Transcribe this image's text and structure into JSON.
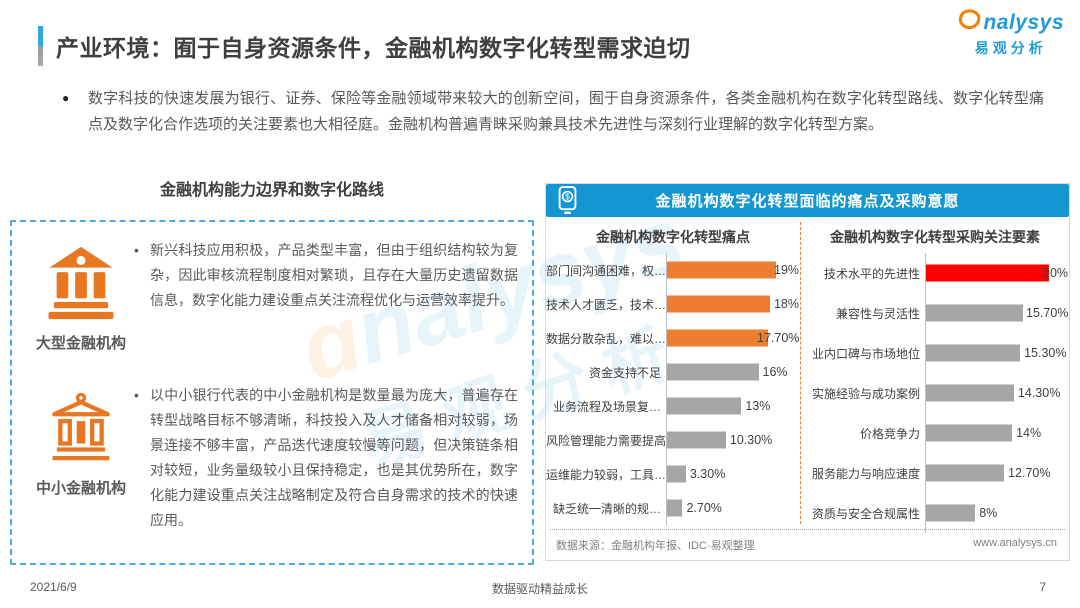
{
  "header": {
    "title": "产业环境：囿于自身资源条件，金融机构数字化转型需求迫切",
    "logo_text": "nalysys",
    "logo_subtext": "易观分析"
  },
  "intro": {
    "bullet": "●",
    "text": "数字科技的快速发展为银行、证券、保险等金融领域带来较大的创新空间，囿于自身资源条件，各类金融机构在数字化转型路线、数字化转型痛点及数字化合作选项的关注要素也大相径庭。金融机构普遍青睐采购兼具技术先进性与深刻行业理解的数字化转型方案。"
  },
  "left_panel": {
    "title": "金融机构能力边界和数字化路线",
    "items": [
      {
        "bullet": "•",
        "label": "大型金融机构",
        "text": "新兴科技应用积极，产品类型丰富，但由于组织结构较为复杂，因此审核流程制度相对繁琐，且存在大量历史遗留数据信息，数字化能力建设重点关注流程优化与运营效率提升。"
      },
      {
        "bullet": "•",
        "label": "中小金融机构",
        "text": "以中小银行代表的中小金融机构是数量最为庞大，普遍存在转型战略目标不够清晰，科技投入及人才储备相对较弱，场景连接不够丰富，产品迭代速度较慢等问题，但决策链条相对较短，业务量级较小且保持稳定，也是其优势所在，数字化能力建设重点关注战略制定及符合自身需求的技术的快速应用。"
      }
    ]
  },
  "right_panel": {
    "header": "金融机构数字化转型面临的痛点及采购意愿",
    "source": "数据来源：金融机构年报、IDC·易观整理",
    "website": "www.analysys.cn"
  },
  "chart_data": [
    {
      "type": "bar",
      "orientation": "horizontal",
      "title": "金融机构数字化转型痛点",
      "categories": [
        "部门间沟通困难，权…",
        "技术人才匮乏，技术…",
        "数据分散杂乱，难以…",
        "资金支持不足",
        "业务流程及场景复…",
        "风险管理能力需要提高",
        "运维能力较弱，工具…",
        "缺乏统一清晰的规…"
      ],
      "values": [
        19,
        18,
        17.7,
        16,
        13,
        10.3,
        3.3,
        2.7
      ],
      "labels": [
        "19%",
        "18%",
        "17.70%",
        "16%",
        "13%",
        "10.30%",
        "3.30%",
        "2.70%"
      ],
      "bar_colors": [
        "#ED7D31",
        "#ED7D31",
        "#ED7D31",
        "#A6A6A6",
        "#A6A6A6",
        "#A6A6A6",
        "#A6A6A6",
        "#A6A6A6"
      ],
      "xlim": [
        0,
        20
      ],
      "grid": false,
      "legend": false
    },
    {
      "type": "bar",
      "orientation": "horizontal",
      "title": "金融机构数字化转型采购关注要素",
      "categories": [
        "技术水平的先进性",
        "兼容性与灵活性",
        "业内口碑与市场地位",
        "实施经验与成功案例",
        "价格竞争力",
        "服务能力与响应速度",
        "资质与安全合规属性"
      ],
      "values": [
        20,
        15.7,
        15.3,
        14.3,
        14,
        12.7,
        8
      ],
      "labels": [
        "20%",
        "15.70%",
        "15.30%",
        "14.30%",
        "14%",
        "12.70%",
        "8%"
      ],
      "bar_colors": [
        "#FE0000",
        "#A6A6A6",
        "#A6A6A6",
        "#A6A6A6",
        "#A6A6A6",
        "#A6A6A6",
        "#A6A6A6"
      ],
      "xlim": [
        0,
        20
      ],
      "grid": false,
      "legend": false
    }
  ],
  "footer": {
    "date": "2021/6/9",
    "slogan": "数据驱动精益成长",
    "page": "7"
  },
  "colors": {
    "header_blue": "#1596D3",
    "bar_orange": "#ED7D31",
    "bar_gray": "#A6A6A6",
    "bar_red": "#FE0000",
    "icon_orange": "#E87722",
    "dashed_border_blue": "#4AACDE",
    "divider_orange": "#ED7D31"
  }
}
